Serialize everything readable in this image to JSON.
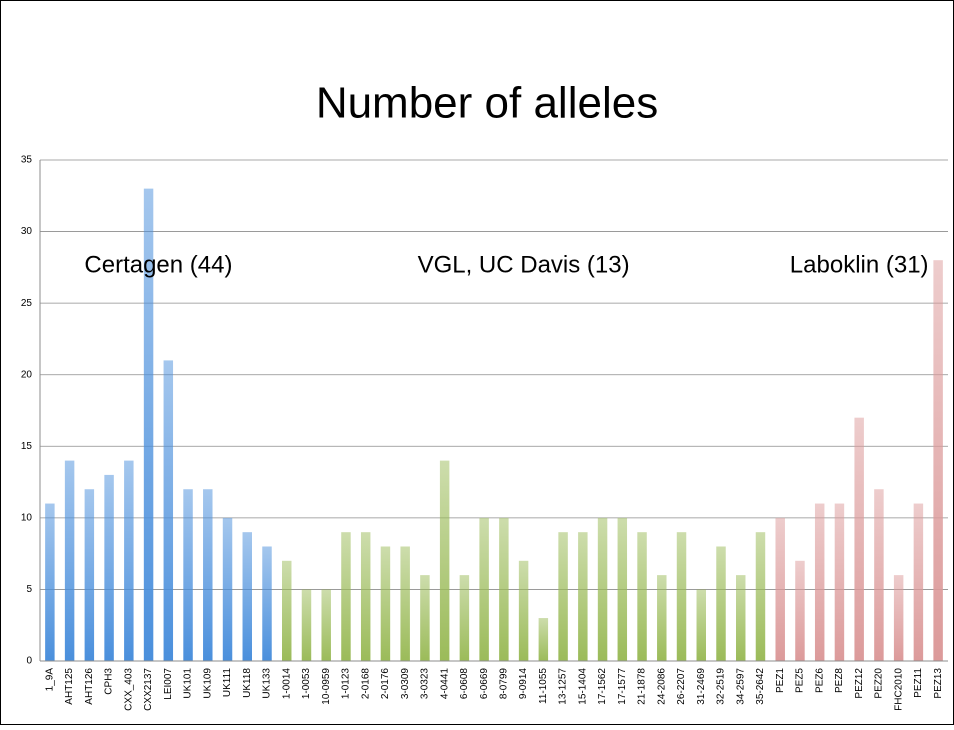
{
  "chart_data": {
    "type": "bar",
    "title": "Number of alleles",
    "categories": [
      "1_9A",
      "AHT125",
      "AHT126",
      "CPH3",
      "CXX_403",
      "CXX2137",
      "LEI007",
      "UK101",
      "UK109",
      "UK111",
      "UK118",
      "UK133",
      "1-0014",
      "1-0053",
      "10-0959",
      "1-0123",
      "2-0168",
      "2-0176",
      "3-0309",
      "3-0323",
      "4-0441",
      "6-0608",
      "6-0669",
      "8-0799",
      "9-0914",
      "11-1055",
      "13-1257",
      "15-1404",
      "17-1562",
      "17-1577",
      "21-1878",
      "24-2086",
      "26-2207",
      "31-2469",
      "32-2519",
      "34-2597",
      "35-2642",
      "PEZ1",
      "PEZ5",
      "PEZ6",
      "PEZ8",
      "PEZ12",
      "PEZ20",
      "FHC2010",
      "PEZ11",
      "PEZ13"
    ],
    "series": [
      {
        "name": "Certagen (44)",
        "color": "#4a8fdc",
        "values": [
          11,
          14,
          12,
          13,
          14,
          33,
          21,
          12,
          12,
          10,
          9,
          8,
          null,
          null,
          null,
          null,
          null,
          null,
          null,
          null,
          null,
          null,
          null,
          null,
          null,
          null,
          null,
          null,
          null,
          null,
          null,
          null,
          null,
          null,
          null,
          null,
          null,
          null,
          null,
          null,
          null,
          null,
          null,
          null,
          null,
          null
        ]
      },
      {
        "name": "VGL, UC Davis (13)",
        "color": "#9bbb59",
        "values": [
          null,
          null,
          null,
          null,
          null,
          null,
          null,
          null,
          null,
          null,
          null,
          null,
          7,
          5,
          5,
          9,
          9,
          8,
          8,
          6,
          14,
          6,
          10,
          10,
          7,
          3,
          9,
          9,
          10,
          10,
          9,
          6,
          9,
          5,
          8,
          6,
          9,
          null,
          null,
          null,
          null,
          null,
          null,
          null,
          null,
          null
        ]
      },
      {
        "name": "Laboklin (31)",
        "color": "#dc9a9a",
        "values": [
          null,
          null,
          null,
          null,
          null,
          null,
          null,
          null,
          null,
          null,
          null,
          null,
          null,
          null,
          null,
          null,
          null,
          null,
          null,
          null,
          null,
          null,
          null,
          null,
          null,
          null,
          null,
          null,
          null,
          null,
          null,
          null,
          null,
          null,
          null,
          null,
          null,
          10,
          7,
          11,
          11,
          17,
          12,
          6,
          11,
          28
        ]
      }
    ],
    "ylim": [
      0,
      35
    ],
    "yticks": [
      0,
      5,
      10,
      15,
      20,
      25,
      30,
      35
    ],
    "grid": true
  }
}
